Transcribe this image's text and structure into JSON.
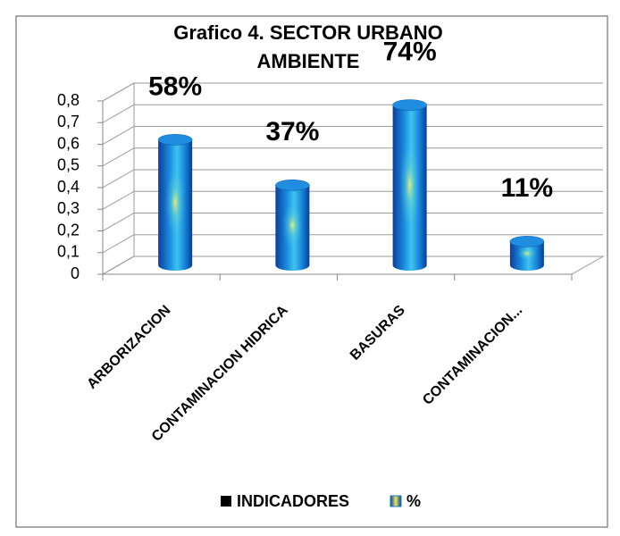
{
  "chart_data": {
    "type": "bar3d",
    "title": [
      "Grafico 4. SECTOR URBANO",
      "AMBIENTE"
    ],
    "categories": [
      "ARBORIZACION",
      "CONTAMINACION HIDRICA",
      "BASURAS",
      "CONTAMINACION..."
    ],
    "series": [
      {
        "name": "INDICADORES",
        "color": "#000000",
        "values": [
          null,
          null,
          null,
          null
        ]
      },
      {
        "name": "%",
        "color": "#1479c8",
        "values": [
          0.58,
          0.37,
          0.74,
          0.11
        ],
        "value_labels": [
          "58%",
          "37%",
          "74%",
          "11%"
        ]
      }
    ],
    "ylim": [
      0,
      0.8
    ],
    "yticks": [
      0,
      {
        "value": 0.1,
        "label": "0,1"
      },
      {
        "value": 0.2,
        "label": "0,2"
      },
      {
        "value": 0.3,
        "label": "0,3"
      },
      {
        "value": 0.4,
        "label": "0,4"
      },
      {
        "value": 0.5,
        "label": "0,5"
      },
      {
        "value": 0.6,
        "label": "0,6"
      },
      {
        "value": 0.7,
        "label": "0,7"
      },
      {
        "value": 0.8,
        "label": "0,8"
      }
    ],
    "grid": true,
    "legend": "bottom"
  }
}
